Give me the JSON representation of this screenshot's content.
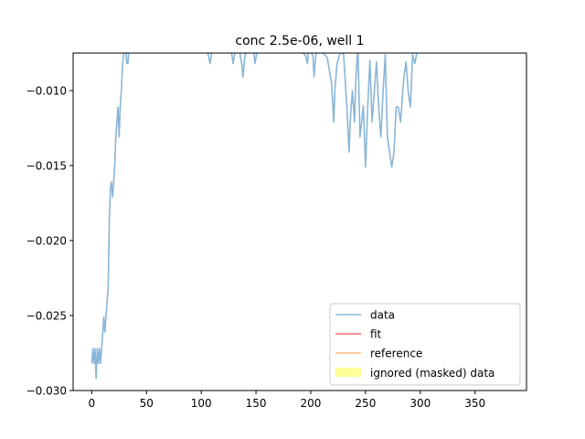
{
  "chart_data": {
    "type": "line",
    "title": "conc 2.5e-06, well 1",
    "xlabel": "",
    "ylabel": "",
    "xlim": [
      -17,
      397
    ],
    "ylim": [
      -0.03,
      -0.0075
    ],
    "x_ticks": [
      0,
      50,
      100,
      150,
      200,
      250,
      300,
      350
    ],
    "y_ticks": [
      -0.03,
      -0.025,
      -0.02,
      -0.015,
      -0.01
    ],
    "x_tick_labels": [
      "0",
      "50",
      "100",
      "150",
      "200",
      "250",
      "300",
      "350"
    ],
    "y_tick_labels": [
      "−0.030",
      "−0.025",
      "−0.020",
      "−0.015",
      "−0.010"
    ],
    "grid": false,
    "legend_position": "lower-right",
    "legend": [
      {
        "label": "data",
        "type": "line",
        "color": "#8ab6d6"
      },
      {
        "label": "fit",
        "type": "line",
        "color": "#f26a6a"
      },
      {
        "label": "reference",
        "type": "line",
        "color": "#f7be80"
      },
      {
        "label": "ignored (masked) data",
        "type": "patch",
        "color": "#ffff99"
      }
    ],
    "series": [
      {
        "name": "data",
        "color": "#8ab6d6",
        "x": [
          0,
          1,
          2,
          3,
          4,
          5,
          6,
          7,
          8,
          9,
          10,
          11,
          12,
          13,
          14,
          15,
          16,
          17,
          18,
          19,
          20,
          21,
          22,
          23,
          24,
          25,
          26,
          27,
          28,
          29,
          30,
          31,
          32,
          33,
          34,
          35,
          36,
          40,
          50,
          60,
          70,
          80,
          90,
          100,
          105,
          107,
          108,
          110,
          115,
          120,
          125,
          128,
          129,
          131,
          135,
          137,
          138,
          140,
          145,
          148,
          149,
          151,
          160,
          170,
          180,
          190,
          195,
          197,
          198,
          200,
          202,
          203,
          205,
          210,
          215,
          219,
          221,
          222,
          224,
          227,
          230,
          233,
          235,
          236,
          238,
          240,
          241,
          243,
          245,
          248,
          250,
          252,
          254,
          256,
          258,
          260,
          262,
          264,
          266,
          268,
          270,
          272,
          274,
          276,
          278,
          280,
          282,
          283,
          285,
          287,
          289,
          291,
          293,
          295,
          297,
          299
        ],
        "y": [
          -0.0282,
          -0.0272,
          -0.0282,
          -0.0272,
          -0.0292,
          -0.0272,
          -0.0282,
          -0.0272,
          -0.0282,
          -0.0272,
          -0.0262,
          -0.0251,
          -0.0261,
          -0.0251,
          -0.0241,
          -0.0231,
          -0.0188,
          -0.0166,
          -0.0161,
          -0.0171,
          -0.0161,
          -0.015,
          -0.0131,
          -0.0121,
          -0.0111,
          -0.0131,
          -0.0111,
          -0.0101,
          -0.0085,
          -0.0076,
          -0.0073,
          -0.0072,
          -0.0082,
          -0.0082,
          -0.0072,
          -0.007,
          -0.0068,
          -0.0068,
          -0.0068,
          -0.0068,
          -0.0068,
          -0.0068,
          -0.0068,
          -0.007,
          -0.0072,
          -0.0078,
          -0.0082,
          -0.0072,
          -0.007,
          -0.007,
          -0.0072,
          -0.0076,
          -0.0082,
          -0.0074,
          -0.0074,
          -0.0082,
          -0.0091,
          -0.0076,
          -0.0072,
          -0.0074,
          -0.0082,
          -0.0074,
          -0.007,
          -0.007,
          -0.007,
          -0.0074,
          -0.0076,
          -0.0082,
          -0.0072,
          -0.0074,
          -0.0077,
          -0.0091,
          -0.0072,
          -0.0074,
          -0.0078,
          -0.0095,
          -0.0121,
          -0.01,
          -0.0082,
          -0.0074,
          -0.0076,
          -0.0111,
          -0.0141,
          -0.0121,
          -0.01,
          -0.0121,
          -0.0095,
          -0.007,
          -0.0131,
          -0.011,
          -0.0151,
          -0.0111,
          -0.008,
          -0.0121,
          -0.0101,
          -0.0081,
          -0.0111,
          -0.0131,
          -0.0101,
          -0.0076,
          -0.0131,
          -0.0141,
          -0.0151,
          -0.0141,
          -0.0111,
          -0.0111,
          -0.0121,
          -0.0111,
          -0.0091,
          -0.0081,
          -0.0101,
          -0.0111,
          -0.0076,
          -0.0082,
          -0.0074,
          -0.0074
        ]
      }
    ]
  }
}
